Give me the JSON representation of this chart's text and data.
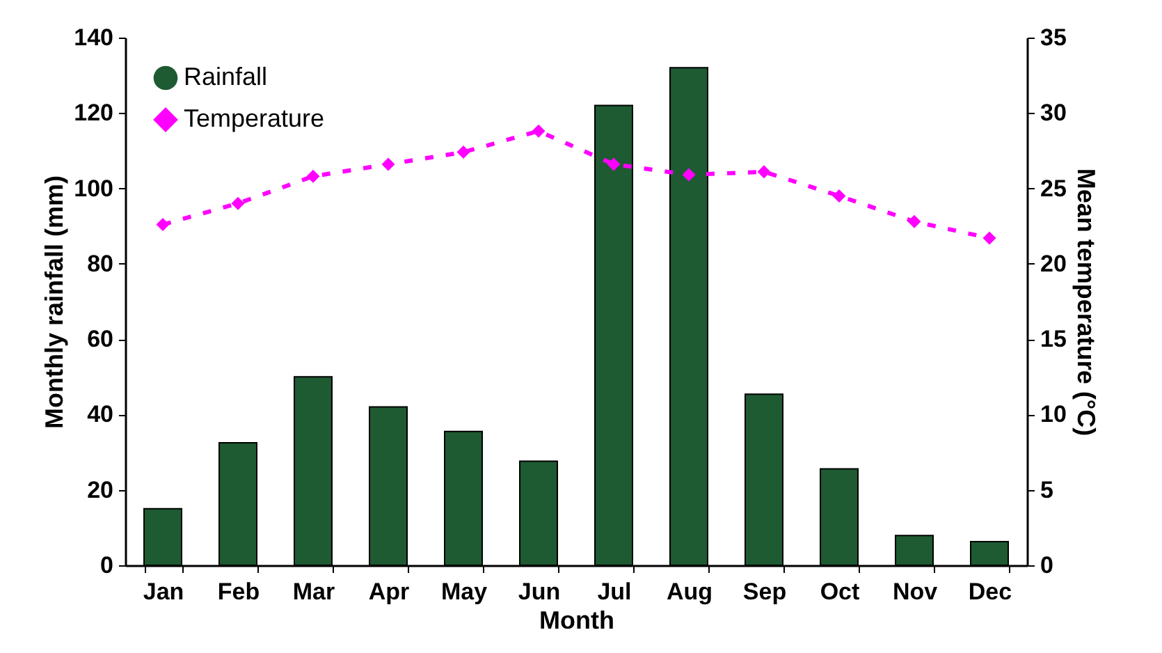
{
  "chart_data": {
    "type": "bar",
    "xlabel": "Month",
    "ylabel": "Monthly rainfall (mm)",
    "y2label": "Mean temperature (°C)",
    "categories": [
      "Jan",
      "Feb",
      "Mar",
      "Apr",
      "May",
      "Jun",
      "Jul",
      "Aug",
      "Sep",
      "Oct",
      "Nov",
      "Dec"
    ],
    "series": [
      {
        "name": "Rainfall",
        "color": "#1e5a32",
        "values": [
          15,
          32.5,
          50,
          42,
          35.5,
          27.6,
          122,
          132,
          45.4,
          25.6,
          7.9,
          6.3
        ]
      },
      {
        "name": "Temperature",
        "type": "line",
        "axis": "y2",
        "color": "#ff00ff",
        "marker": "diamond",
        "line_style": "dashed",
        "values": [
          22.6,
          24.0,
          25.8,
          26.6,
          27.4,
          28.8,
          26.6,
          25.9,
          26.1,
          24.5,
          22.8,
          21.7
        ]
      }
    ],
    "ylim": [
      0,
      140
    ],
    "yticks": [
      0,
      20,
      40,
      60,
      80,
      100,
      120,
      140
    ],
    "y2lim": [
      0,
      35
    ],
    "y2ticks": [
      0,
      5,
      10,
      15,
      20,
      25,
      30,
      35
    ],
    "grid": false,
    "legend": "top left"
  }
}
